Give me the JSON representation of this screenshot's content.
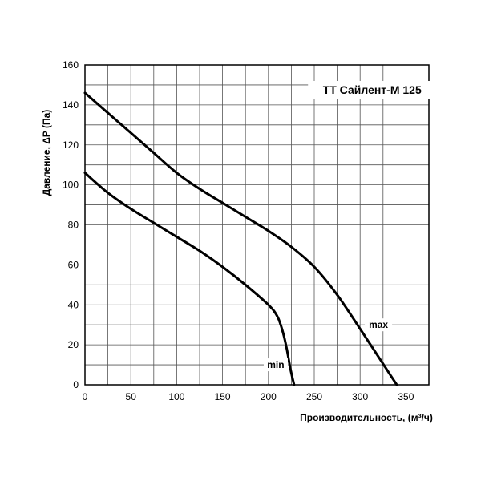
{
  "chart_data": {
    "type": "line",
    "title": "ТТ Сайлент-М 125",
    "xlabel": "Производительность, (м³/ч)",
    "ylabel": "Давление, ΔP (Па)",
    "xlim": [
      0,
      375
    ],
    "ylim": [
      0,
      160
    ],
    "x_ticks": [
      0,
      50,
      100,
      150,
      200,
      250,
      300,
      350
    ],
    "y_ticks": [
      0,
      20,
      40,
      60,
      80,
      100,
      120,
      140,
      160
    ],
    "grid": true,
    "series": [
      {
        "name": "max",
        "x": [
          0,
          25,
          50,
          75,
          100,
          125,
          150,
          175,
          200,
          225,
          250,
          275,
          300,
          310,
          320,
          330,
          340
        ],
        "y": [
          146,
          136,
          126,
          116,
          106,
          98,
          91,
          84,
          77,
          69,
          59,
          45,
          28,
          21,
          14,
          7,
          0
        ]
      },
      {
        "name": "min",
        "x": [
          0,
          25,
          50,
          75,
          100,
          125,
          150,
          175,
          200,
          210,
          216,
          220,
          224,
          228
        ],
        "y": [
          106,
          96,
          88,
          81,
          74,
          67,
          59,
          50,
          40,
          34,
          26,
          18,
          8,
          0
        ]
      }
    ],
    "labels": {
      "max": {
        "text": "max",
        "x": 320,
        "y": 30
      },
      "min": {
        "text": "min",
        "x": 208,
        "y": 10
      }
    }
  }
}
